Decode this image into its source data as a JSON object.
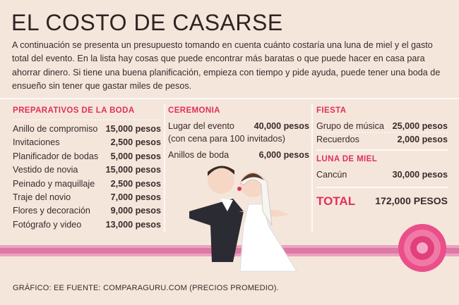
{
  "title": "EL COSTO DE CASARSE",
  "intro": "A continuación se presenta un presupuesto tomando en cuenta cuánto costaría una luna de miel y el gasto total del evento. En la lista hay cosas que puede encontrar más baratas o que puede hacer en casa para ahorrar dinero. Si tiene una buena planificación, empieza con tiempo y pide ayuda, puede tener una boda de ensueño sin tener que gastar miles de pesos.",
  "sections": [
    {
      "heading": "PREPARATIVOS DE LA BODA",
      "items": [
        {
          "name": "Anillo de compromiso",
          "amount": "15,000 pesos"
        },
        {
          "name": "Invitaciones",
          "amount": "2,500 pesos"
        },
        {
          "name": "Planificador de bodas",
          "amount": "5,000 pesos"
        },
        {
          "name": "Vestido de novia",
          "amount": "15,000 pesos"
        },
        {
          "name": "Peinado y maquillaje",
          "amount": "2,500 pesos"
        },
        {
          "name": "Traje del novio",
          "amount": "7,000 pesos"
        },
        {
          "name": "Flores y decoración",
          "amount": "9,000 pesos"
        },
        {
          "name": "Fotógrafo y video",
          "amount": "13,000 pesos"
        }
      ]
    },
    {
      "heading": "CEREMONIA",
      "items": [
        {
          "name": "Lugar del evento",
          "note": "(con cena para 100 invitados)",
          "amount": "40,000 pesos"
        },
        {
          "name": "Anillos de boda",
          "amount": "6,000 pesos"
        }
      ]
    },
    {
      "heading": "FIESTA",
      "items": [
        {
          "name": "Grupo de música",
          "amount": "25,000 pesos"
        },
        {
          "name": "Recuerdos",
          "amount": "2,000 pesos"
        }
      ]
    },
    {
      "heading": "LUNA DE MIEL",
      "items": [
        {
          "name": "Cancún",
          "amount": "30,000 pesos"
        }
      ]
    }
  ],
  "total": {
    "label": "TOTAL",
    "amount": "172,000 PESOS"
  },
  "footer": "GRÁFICO: EE  FUENTE: COMPARAGURU.COM (PRECIOS PROMEDIO)."
}
